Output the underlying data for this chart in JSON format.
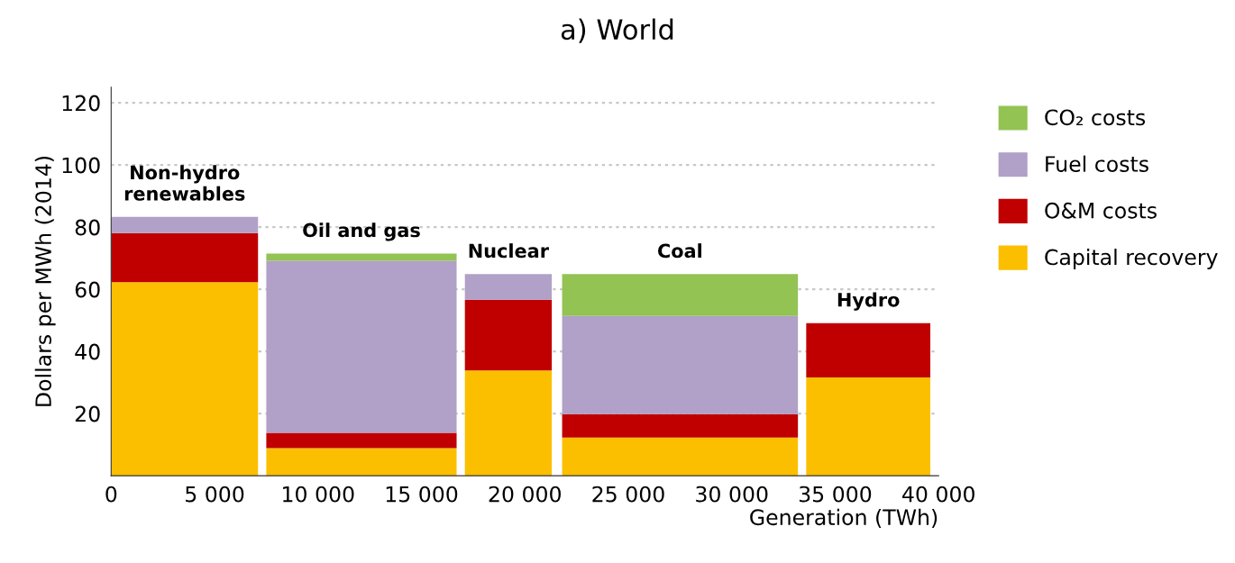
{
  "chart_data": {
    "type": "area",
    "stacked": true,
    "title": "a) World",
    "xlabel": "Generation (TWh)",
    "ylabel": "Dollars per MWh (2014)",
    "x": [
      0,
      7100,
      7300,
      7500,
      16700,
      16900,
      17100,
      21300,
      21500,
      21800,
      33200,
      33400,
      33600,
      39600
    ],
    "series": [
      {
        "name": "Capital recovery",
        "color": "#fbbf00",
        "values": [
          62.3,
          62.3,
          null,
          8.9,
          8.9,
          null,
          33.9,
          33.9,
          null,
          12.3,
          12.3,
          null,
          31.6,
          31.6
        ]
      },
      {
        "name": "O&M costs",
        "color": "#c00000",
        "values": [
          15.8,
          15.8,
          null,
          4.9,
          4.9,
          null,
          22.7,
          22.7,
          null,
          7.5,
          7.5,
          null,
          17.5,
          17.5
        ]
      },
      {
        "name": "Fuel costs",
        "color": "#b1a0c7",
        "values": [
          5.2,
          5.2,
          null,
          55.4,
          55.4,
          null,
          8.3,
          8.3,
          null,
          31.6,
          31.6,
          null,
          null,
          null
        ]
      },
      {
        "name": "CO₂ costs",
        "color": "#92c353",
        "values": [
          null,
          null,
          null,
          2.3,
          2.3,
          null,
          null,
          null,
          null,
          13.5,
          13.5,
          null,
          null,
          null
        ]
      }
    ],
    "annotations": [
      "Non-hydro\nrenewables",
      "Oil and gas",
      "Nuclear",
      "Coal",
      "Hydro"
    ],
    "xlim": [
      0,
      40000
    ],
    "ylim": [
      0,
      125
    ],
    "xticks": [
      0,
      {
        "value": 5000,
        "label": "5 000"
      },
      {
        "value": 10000,
        "label": "10 000"
      },
      {
        "value": 15000,
        "label": "15 000"
      },
      {
        "value": 20000,
        "label": "20 000"
      },
      {
        "value": 25000,
        "label": "25 000"
      },
      {
        "value": 30000,
        "label": "30 000"
      },
      {
        "value": 35000,
        "label": "35 000"
      },
      {
        "value": 40000,
        "label": "40 000"
      }
    ],
    "yticks": [
      20,
      40,
      60,
      80,
      100,
      120
    ],
    "grid": "y",
    "legend": "right"
  }
}
